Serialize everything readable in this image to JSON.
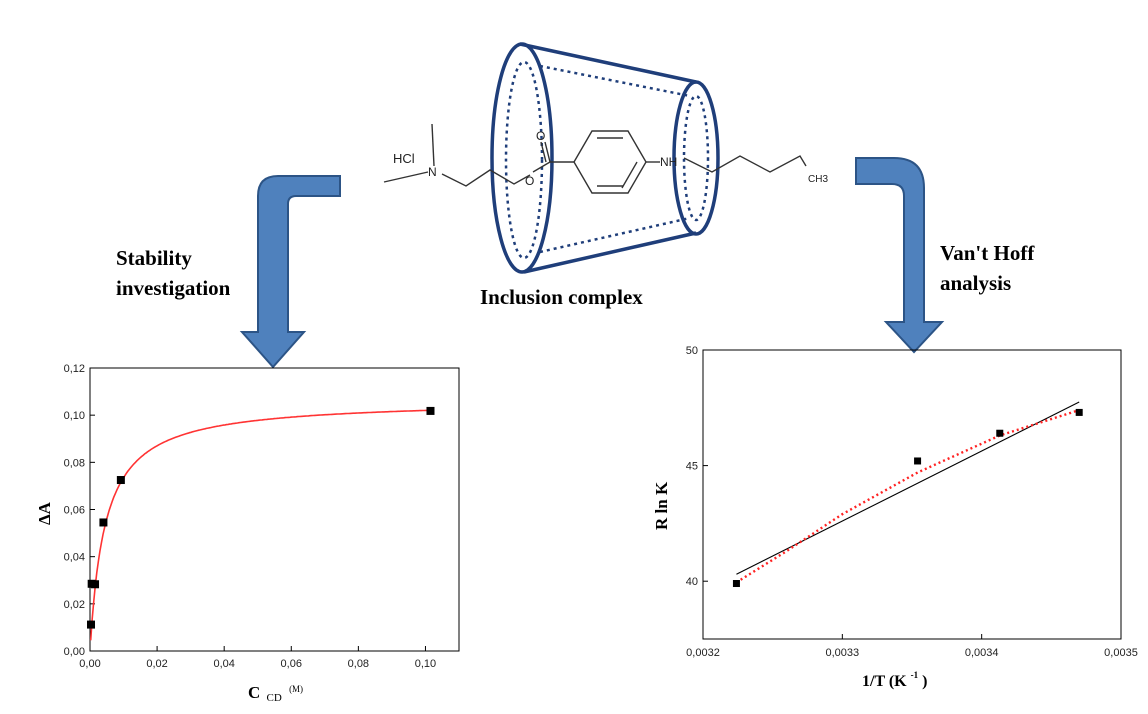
{
  "labels": {
    "left_arrow": [
      "Stability",
      "investigation"
    ],
    "right_arrow": [
      "Van't Hoff",
      "analysis"
    ],
    "complex": "Inclusion complex"
  },
  "molecule": {
    "hcl": "HCl",
    "n": "N",
    "o_carbonyl": "O",
    "o_ester": "O",
    "nh": "NH",
    "ch3": "CH3"
  },
  "colors": {
    "arrow_fill": "#4f81bd",
    "arrow_stroke": "#2c5486",
    "cone": "#1f3e7a",
    "fit_red": "#ff3333",
    "fit_black": "#000000",
    "point": "#000000"
  },
  "chart_data": [
    {
      "type": "scatter",
      "title": "",
      "xlabel_main": "C",
      "xlabel_sub": "CD",
      "xlabel_sup": "(M)",
      "ylabel": "ΔA",
      "xlim": [
        0,
        0.11
      ],
      "ylim": [
        0,
        0.12
      ],
      "xticks": [
        "0,00",
        "0,02",
        "0,04",
        "0,06",
        "0,08",
        "0,10"
      ],
      "yticks": [
        "0,00",
        "0,02",
        "0,04",
        "0,06",
        "0,08",
        "0,10",
        "0,12"
      ],
      "points": [
        {
          "x": 0.0003,
          "y": 0.0112
        },
        {
          "x": 0.0005,
          "y": 0.0285
        },
        {
          "x": 0.0015,
          "y": 0.0283
        },
        {
          "x": 0.004,
          "y": 0.0545
        },
        {
          "x": 0.0092,
          "y": 0.0725
        },
        {
          "x": 0.1015,
          "y": 0.1018
        }
      ],
      "fit": {
        "type": "binding-isotherm",
        "Amax": 0.1066,
        "Kd": 0.0045,
        "color": "red"
      }
    },
    {
      "type": "scatter",
      "title": "",
      "xlabel": "1/T  (K",
      "xlabel_sup": "-1",
      "xlabel_close": ")",
      "ylabel": "R ln K",
      "xlim": [
        0.0032,
        0.0035
      ],
      "ylim": [
        37.5,
        50
      ],
      "xticks": [
        "0,0032",
        "0,0033",
        "0,0034",
        "0,0035"
      ],
      "yticks": [
        "40",
        "45",
        "50"
      ],
      "points": [
        {
          "x": 0.003224,
          "y": 39.9
        },
        {
          "x": 0.003354,
          "y": 45.2
        },
        {
          "x": 0.003413,
          "y": 46.4
        },
        {
          "x": 0.00347,
          "y": 47.3
        }
      ],
      "fits": [
        {
          "type": "linear",
          "from": [
            0.003224,
            40.3
          ],
          "to": [
            0.00347,
            47.75
          ],
          "color": "black"
        },
        {
          "type": "curve",
          "points": [
            [
              0.003224,
              39.95
            ],
            [
              0.00326,
              41.3
            ],
            [
              0.0033,
              42.9
            ],
            [
              0.003354,
              44.7
            ],
            [
              0.003413,
              46.3
            ],
            [
              0.00347,
              47.4
            ]
          ],
          "color": "red-dotted"
        }
      ]
    }
  ]
}
